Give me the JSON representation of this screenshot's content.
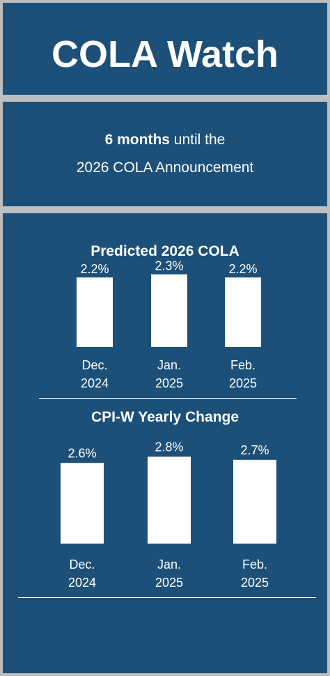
{
  "header": {
    "title": "COLA Watch"
  },
  "countdown": {
    "months": "6 months",
    "suffix": " until the",
    "line2": "2026 COLA Announcement"
  },
  "colors": {
    "panel": "#1d5078",
    "border": "#bfbfbf",
    "bar": "#ffffff",
    "text": "#ffffff"
  },
  "chart_data": [
    {
      "type": "bar",
      "title": "Predicted 2026 COLA",
      "categories": [
        [
          "Dec.",
          "2024"
        ],
        [
          "Jan.",
          "2025"
        ],
        [
          "Feb.",
          "2025"
        ]
      ],
      "values": [
        2.2,
        2.3,
        2.2
      ],
      "value_labels": [
        "2.2%",
        "2.3%",
        "2.2%"
      ],
      "ylim": [
        0,
        2.6
      ],
      "grid": false,
      "axes_visible": false
    },
    {
      "type": "bar",
      "title": "CPI-W Yearly Change",
      "categories": [
        [
          "Dec.",
          "2024"
        ],
        [
          "Jan.",
          "2025"
        ],
        [
          "Feb.",
          "2025"
        ]
      ],
      "values": [
        2.6,
        2.8,
        2.7
      ],
      "value_labels": [
        "2.6%",
        "2.8%",
        "2.7%"
      ],
      "ylim": [
        0,
        3.1
      ],
      "grid": false,
      "axes_visible": false
    }
  ]
}
